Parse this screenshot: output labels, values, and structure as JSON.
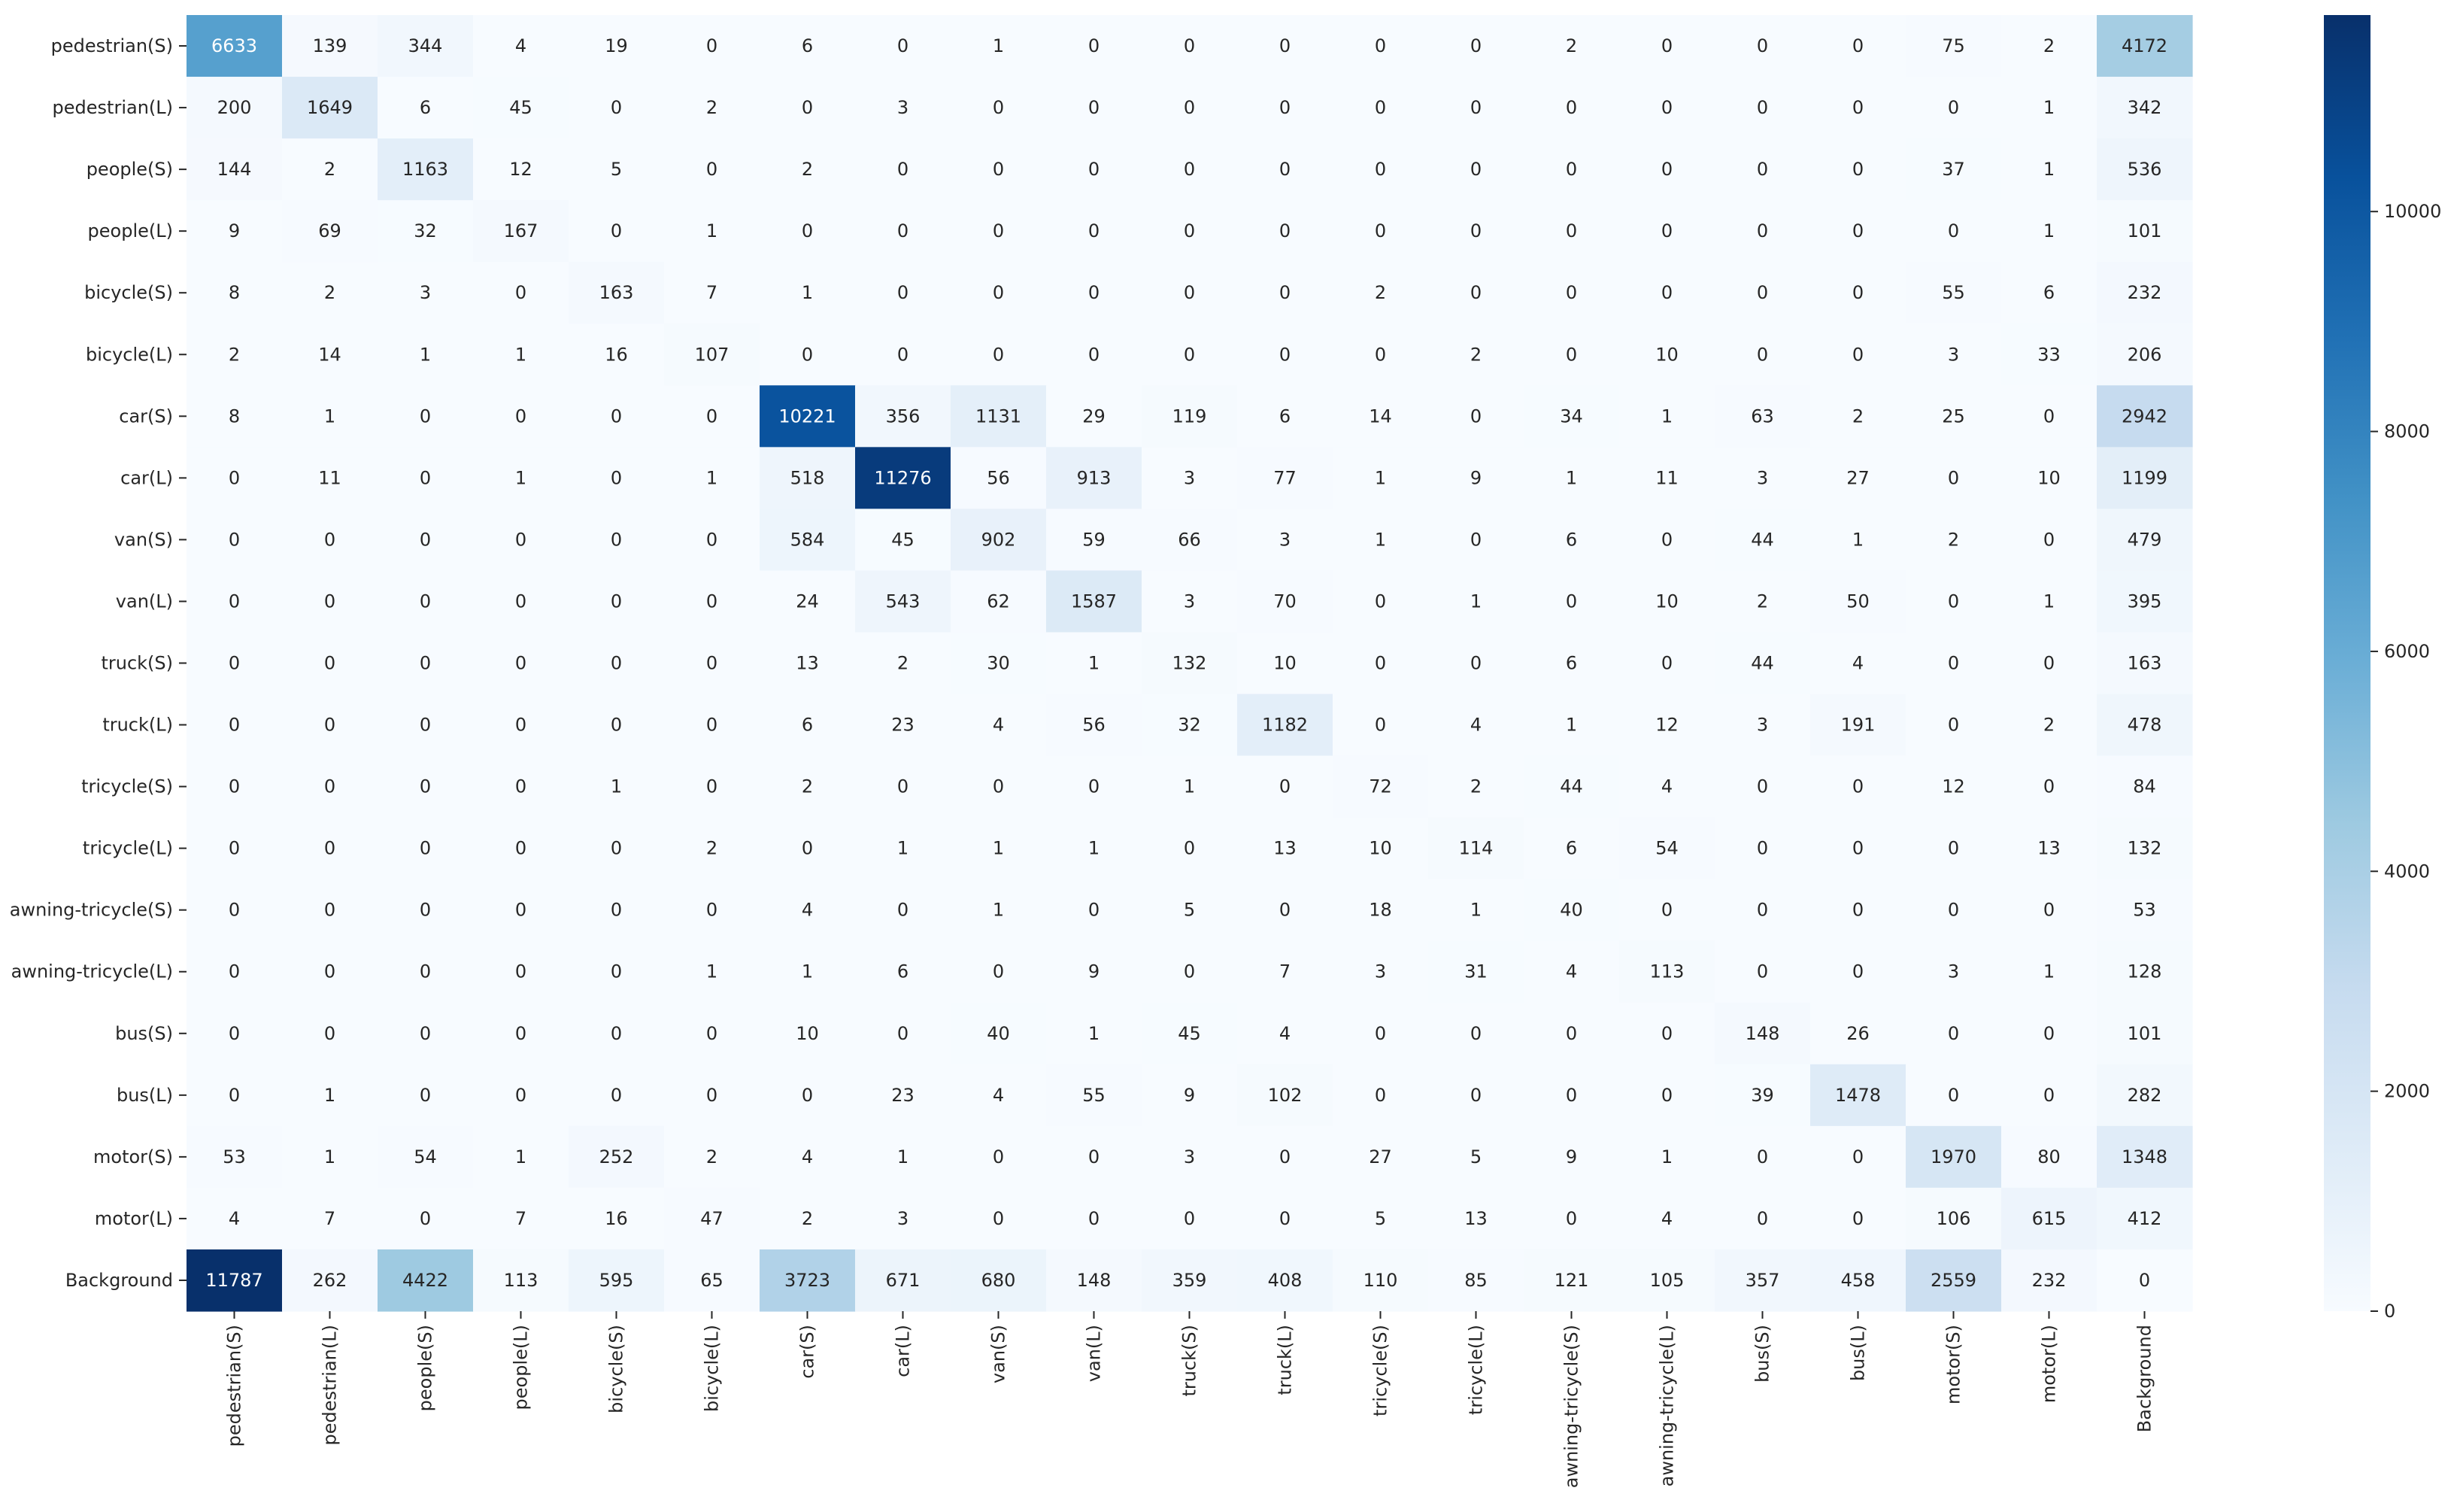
{
  "chart_data": {
    "type": "heatmap",
    "title": "",
    "xlabel": "",
    "ylabel": "",
    "row_labels": [
      "pedestrian(S)",
      "pedestrian(L)",
      "people(S)",
      "people(L)",
      "bicycle(S)",
      "bicycle(L)",
      "car(S)",
      "car(L)",
      "van(S)",
      "van(L)",
      "truck(S)",
      "truck(L)",
      "tricycle(S)",
      "tricycle(L)",
      "awning-tricycle(S)",
      "awning-tricycle(L)",
      "bus(S)",
      "bus(L)",
      "motor(S)",
      "motor(L)",
      "Background"
    ],
    "col_labels": [
      "pedestrian(S)",
      "pedestrian(L)",
      "people(S)",
      "people(L)",
      "bicycle(S)",
      "bicycle(L)",
      "car(S)",
      "car(L)",
      "van(S)",
      "van(L)",
      "truck(S)",
      "truck(L)",
      "tricycle(S)",
      "tricycle(L)",
      "awning-tricycle(S)",
      "awning-tricycle(L)",
      "bus(S)",
      "bus(L)",
      "motor(S)",
      "motor(L)",
      "Background"
    ],
    "values": [
      [
        6633,
        139,
        344,
        4,
        19,
        0,
        6,
        0,
        1,
        0,
        0,
        0,
        0,
        0,
        2,
        0,
        0,
        0,
        75,
        2,
        4172
      ],
      [
        200,
        1649,
        6,
        45,
        0,
        2,
        0,
        3,
        0,
        0,
        0,
        0,
        0,
        0,
        0,
        0,
        0,
        0,
        0,
        1,
        342
      ],
      [
        144,
        2,
        1163,
        12,
        5,
        0,
        2,
        0,
        0,
        0,
        0,
        0,
        0,
        0,
        0,
        0,
        0,
        0,
        37,
        1,
        536
      ],
      [
        9,
        69,
        32,
        167,
        0,
        1,
        0,
        0,
        0,
        0,
        0,
        0,
        0,
        0,
        0,
        0,
        0,
        0,
        0,
        1,
        101
      ],
      [
        8,
        2,
        3,
        0,
        163,
        7,
        1,
        0,
        0,
        0,
        0,
        0,
        2,
        0,
        0,
        0,
        0,
        0,
        55,
        6,
        232
      ],
      [
        2,
        14,
        1,
        1,
        16,
        107,
        0,
        0,
        0,
        0,
        0,
        0,
        0,
        2,
        0,
        10,
        0,
        0,
        3,
        33,
        206
      ],
      [
        8,
        1,
        0,
        0,
        0,
        0,
        10221,
        356,
        1131,
        29,
        119,
        6,
        14,
        0,
        34,
        1,
        63,
        2,
        25,
        0,
        2942
      ],
      [
        0,
        11,
        0,
        1,
        0,
        1,
        518,
        11276,
        56,
        913,
        3,
        77,
        1,
        9,
        1,
        11,
        3,
        27,
        0,
        10,
        1199
      ],
      [
        0,
        0,
        0,
        0,
        0,
        0,
        584,
        45,
        902,
        59,
        66,
        3,
        1,
        0,
        6,
        0,
        44,
        1,
        2,
        0,
        479
      ],
      [
        0,
        0,
        0,
        0,
        0,
        0,
        24,
        543,
        62,
        1587,
        3,
        70,
        0,
        1,
        0,
        10,
        2,
        50,
        0,
        1,
        395
      ],
      [
        0,
        0,
        0,
        0,
        0,
        0,
        13,
        2,
        30,
        1,
        132,
        10,
        0,
        0,
        6,
        0,
        44,
        4,
        0,
        0,
        163
      ],
      [
        0,
        0,
        0,
        0,
        0,
        0,
        6,
        23,
        4,
        56,
        32,
        1182,
        0,
        4,
        1,
        12,
        3,
        191,
        0,
        2,
        478
      ],
      [
        0,
        0,
        0,
        0,
        1,
        0,
        2,
        0,
        0,
        0,
        1,
        0,
        72,
        2,
        44,
        4,
        0,
        0,
        12,
        0,
        84
      ],
      [
        0,
        0,
        0,
        0,
        0,
        2,
        0,
        1,
        1,
        1,
        0,
        13,
        10,
        114,
        6,
        54,
        0,
        0,
        0,
        13,
        132
      ],
      [
        0,
        0,
        0,
        0,
        0,
        0,
        4,
        0,
        1,
        0,
        5,
        0,
        18,
        1,
        40,
        0,
        0,
        0,
        0,
        0,
        53
      ],
      [
        0,
        0,
        0,
        0,
        0,
        1,
        1,
        6,
        0,
        9,
        0,
        7,
        3,
        31,
        4,
        113,
        0,
        0,
        3,
        1,
        128
      ],
      [
        0,
        0,
        0,
        0,
        0,
        0,
        10,
        0,
        40,
        1,
        45,
        4,
        0,
        0,
        0,
        0,
        148,
        26,
        0,
        0,
        101
      ],
      [
        0,
        1,
        0,
        0,
        0,
        0,
        0,
        23,
        4,
        55,
        9,
        102,
        0,
        0,
        0,
        0,
        39,
        1478,
        0,
        0,
        282
      ],
      [
        53,
        1,
        54,
        1,
        252,
        2,
        4,
        1,
        0,
        0,
        3,
        0,
        27,
        5,
        9,
        1,
        0,
        0,
        1970,
        80,
        1348
      ],
      [
        4,
        7,
        0,
        7,
        16,
        47,
        2,
        3,
        0,
        0,
        0,
        0,
        5,
        13,
        0,
        4,
        0,
        0,
        106,
        615,
        412
      ],
      [
        11787,
        262,
        4422,
        113,
        595,
        65,
        3723,
        671,
        680,
        148,
        359,
        408,
        110,
        85,
        121,
        105,
        357,
        458,
        2559,
        232,
        0
      ]
    ],
    "colorbar": {
      "min": 0,
      "max": 11787,
      "ticks": [
        0,
        2000,
        4000,
        6000,
        8000,
        10000
      ],
      "colormap": "Blues"
    },
    "colormap_stops": [
      "#f7fbff",
      "#deebf7",
      "#c6dbef",
      "#9ecae1",
      "#6baed6",
      "#4292c6",
      "#2171b5",
      "#08519c",
      "#08306b"
    ],
    "grid": false
  }
}
